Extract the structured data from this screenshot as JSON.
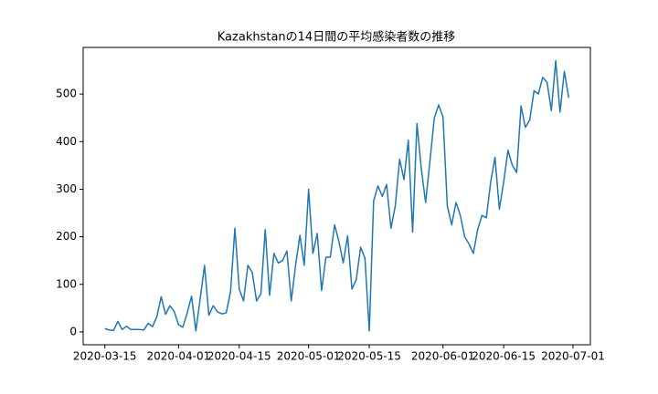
{
  "chart_data": {
    "type": "line",
    "title": "Kazakhstanの14日間の平均感染者数の推移",
    "x": [
      "2020-03-15",
      "2020-03-16",
      "2020-03-17",
      "2020-03-18",
      "2020-03-19",
      "2020-03-20",
      "2020-03-21",
      "2020-03-22",
      "2020-03-23",
      "2020-03-24",
      "2020-03-25",
      "2020-03-26",
      "2020-03-27",
      "2020-03-28",
      "2020-03-29",
      "2020-03-30",
      "2020-03-31",
      "2020-04-01",
      "2020-04-02",
      "2020-04-03",
      "2020-04-04",
      "2020-04-05",
      "2020-04-06",
      "2020-04-07",
      "2020-04-08",
      "2020-04-09",
      "2020-04-10",
      "2020-04-11",
      "2020-04-12",
      "2020-04-13",
      "2020-04-14",
      "2020-04-15",
      "2020-04-16",
      "2020-04-17",
      "2020-04-18",
      "2020-04-19",
      "2020-04-20",
      "2020-04-21",
      "2020-04-22",
      "2020-04-23",
      "2020-04-24",
      "2020-04-25",
      "2020-04-26",
      "2020-04-27",
      "2020-04-28",
      "2020-04-29",
      "2020-04-30",
      "2020-05-01",
      "2020-05-02",
      "2020-05-03",
      "2020-05-04",
      "2020-05-05",
      "2020-05-06",
      "2020-05-07",
      "2020-05-08",
      "2020-05-09",
      "2020-05-10",
      "2020-05-11",
      "2020-05-12",
      "2020-05-13",
      "2020-05-14",
      "2020-05-15",
      "2020-05-16",
      "2020-05-17",
      "2020-05-18",
      "2020-05-19",
      "2020-05-20",
      "2020-05-21",
      "2020-05-22",
      "2020-05-23",
      "2020-05-24",
      "2020-05-25",
      "2020-05-26",
      "2020-05-27",
      "2020-05-28",
      "2020-05-29",
      "2020-05-30",
      "2020-05-31",
      "2020-06-01",
      "2020-06-02",
      "2020-06-03",
      "2020-06-04",
      "2020-06-05",
      "2020-06-06",
      "2020-06-07",
      "2020-06-08",
      "2020-06-09",
      "2020-06-10",
      "2020-06-11",
      "2020-06-12",
      "2020-06-13",
      "2020-06-14",
      "2020-06-15",
      "2020-06-16",
      "2020-06-17",
      "2020-06-18",
      "2020-06-19",
      "2020-06-20",
      "2020-06-21",
      "2020-06-22",
      "2020-06-23",
      "2020-06-24",
      "2020-06-25",
      "2020-06-26",
      "2020-06-27",
      "2020-06-28",
      "2020-06-29",
      "2020-06-30"
    ],
    "series": [
      {
        "color": "#1f77b4",
        "values": [
          7,
          4,
          3,
          22,
          5,
          12,
          5,
          5,
          5,
          4,
          18,
          11,
          32,
          74,
          37,
          55,
          43,
          15,
          10,
          40,
          75,
          2,
          70,
          140,
          35,
          55,
          42,
          38,
          40,
          85,
          218,
          90,
          65,
          140,
          125,
          65,
          80,
          215,
          77,
          165,
          145,
          150,
          170,
          65,
          140,
          203,
          140,
          300,
          165,
          207,
          87,
          157,
          157,
          225,
          190,
          145,
          202,
          90,
          110,
          178,
          155,
          2,
          275,
          307,
          285,
          310,
          218,
          265,
          363,
          320,
          403,
          210,
          438,
          343,
          272,
          360,
          450,
          477,
          452,
          265,
          225,
          272,
          245,
          200,
          185,
          165,
          215,
          245,
          240,
          315,
          367,
          258,
          315,
          382,
          350,
          335,
          475,
          430,
          445,
          507,
          500,
          535,
          525,
          465,
          570,
          462,
          548,
          492
        ]
      }
    ],
    "xlim": [
      "2020-03-10",
      "2020-07-05"
    ],
    "xticks": [
      "2020-03-15",
      "2020-04-01",
      "2020-04-15",
      "2020-05-01",
      "2020-05-15",
      "2020-06-01",
      "2020-06-15",
      "2020-07-01"
    ],
    "ylim": [
      -27,
      598
    ],
    "yticks": [
      0,
      100,
      200,
      300,
      400,
      500
    ]
  }
}
